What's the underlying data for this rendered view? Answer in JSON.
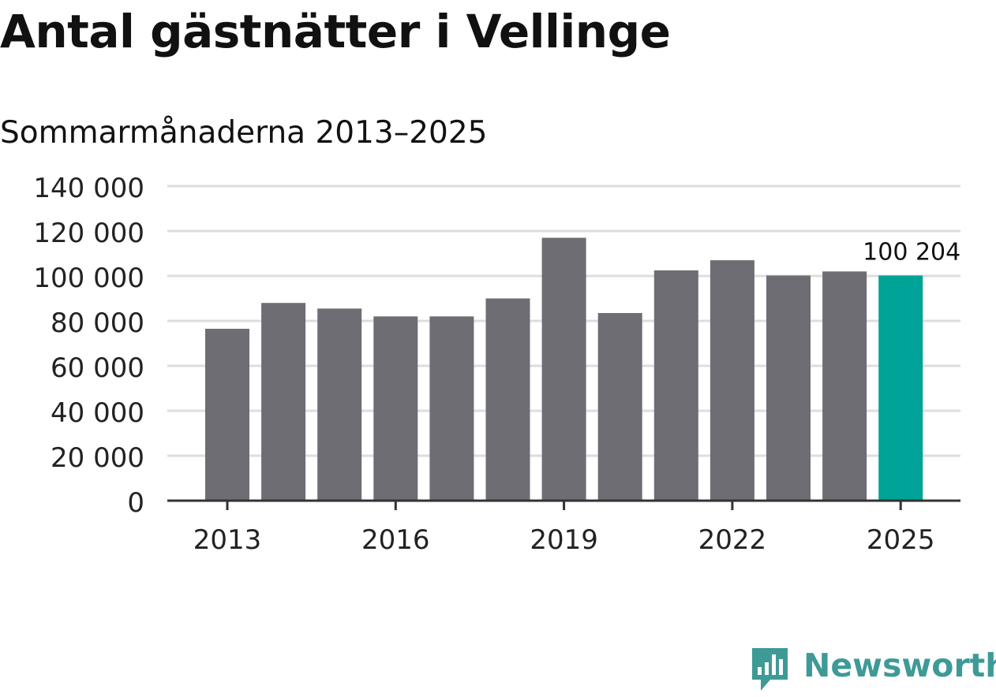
{
  "chart_data": {
    "type": "bar",
    "title": "Antal gästnätter i Vellinge",
    "subtitle": "Sommarmånaderna 2013–2025",
    "categories": [
      "2013",
      "2014",
      "2015",
      "2016",
      "2017",
      "2018",
      "2019",
      "2020",
      "2021",
      "2022",
      "2023",
      "2024",
      "2025"
    ],
    "values": [
      76500,
      88000,
      85500,
      82000,
      82000,
      90000,
      117000,
      83500,
      102500,
      107000,
      100200,
      102000,
      100204
    ],
    "highlight_index": 12,
    "highlight_label": "100 204",
    "ylim": [
      0,
      140000
    ],
    "yticks": [
      0,
      20000,
      40000,
      60000,
      80000,
      100000,
      120000,
      140000
    ],
    "ytick_labels": [
      "0",
      "20 000",
      "40 000",
      "60 000",
      "80 000",
      "100 000",
      "120 000",
      "140 000"
    ],
    "xtick_labels": [
      "2013",
      "2016",
      "2019",
      "2022",
      "2025"
    ],
    "xtick_indices": [
      0,
      3,
      6,
      9,
      12
    ],
    "grid": true,
    "colors": {
      "bar": "#6e6d73",
      "highlight": "#00a397",
      "grid": "#dddddd",
      "axis": "#333333"
    }
  },
  "brand": {
    "name": "Newsworthy",
    "icon": "bar-chart-badge-icon",
    "color": "#3e9a96"
  }
}
